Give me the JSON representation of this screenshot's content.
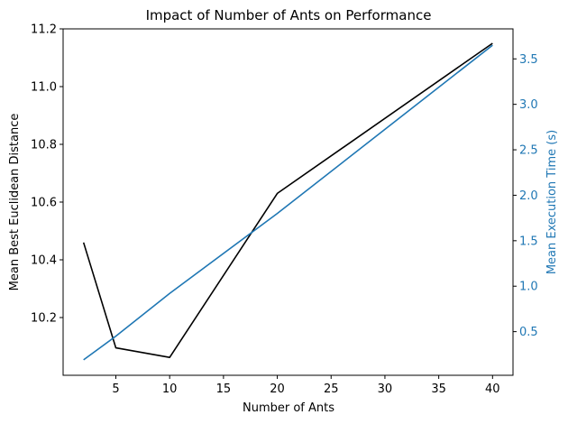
{
  "chart_data": {
    "type": "line",
    "title": "Impact of Number of Ants on Performance",
    "xlabel": "Number of Ants",
    "ylabel_left": "Mean Best Euclidean Distance",
    "ylabel_right": "Mean Execution Time (s)",
    "x": [
      2,
      5,
      10,
      20,
      40
    ],
    "xlim": [
      0.1,
      41.9
    ],
    "xticks": [
      5,
      10,
      15,
      20,
      25,
      30,
      35,
      40
    ],
    "ylim_left": [
      10.0,
      11.2
    ],
    "yticks_left": [
      10.2,
      10.4,
      10.6,
      10.8,
      11.0,
      11.2
    ],
    "ylim_right": [
      0.02,
      3.83
    ],
    "yticks_right": [
      0.5,
      1.0,
      1.5,
      2.0,
      2.5,
      3.0,
      3.5
    ],
    "series": [
      {
        "axis": "left",
        "color": "#000000",
        "values": [
          10.46,
          10.095,
          10.062,
          10.63,
          11.15
        ]
      },
      {
        "axis": "right",
        "color": "#1f77b4",
        "values": [
          0.19,
          0.45,
          0.92,
          1.8,
          3.65
        ]
      }
    ],
    "right_axis_color": "#1f77b4",
    "grid": false
  }
}
